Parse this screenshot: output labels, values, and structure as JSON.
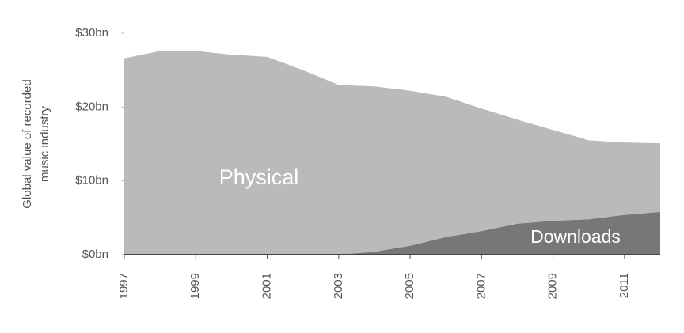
{
  "chart_data": {
    "type": "stacked_area",
    "ylabel": [
      "Global value of recorded",
      "music industry"
    ],
    "x": [
      1997,
      1998,
      1999,
      2000,
      2001,
      2002,
      2003,
      2004,
      2005,
      2006,
      2007,
      2008,
      2009,
      2010,
      2011,
      2012
    ],
    "series": [
      {
        "name": "Downloads",
        "color": "#777777",
        "values": [
          0,
          0,
          0,
          0,
          0,
          0,
          0,
          0.4,
          1.2,
          2.4,
          3.2,
          4.2,
          4.6,
          4.8,
          5.4,
          5.8
        ]
      },
      {
        "name": "Physical",
        "color": "#bababa",
        "values": [
          26.6,
          27.6,
          27.6,
          27.1,
          26.8,
          25.0,
          23.0,
          22.4,
          21.0,
          19.0,
          16.6,
          14.1,
          12.3,
          10.7,
          9.8,
          9.3
        ]
      }
    ],
    "xlim": [
      1997,
      2012
    ],
    "xticks": [
      1997,
      1999,
      2001,
      2003,
      2005,
      2007,
      2009,
      2011
    ],
    "ylim": [
      0,
      30
    ],
    "yticks": [
      {
        "value": 0,
        "label": "$0bn"
      },
      {
        "value": 10,
        "label": "$10bn"
      },
      {
        "value": 20,
        "label": "$20bn"
      },
      {
        "value": 30,
        "label": "$30bn"
      }
    ]
  }
}
